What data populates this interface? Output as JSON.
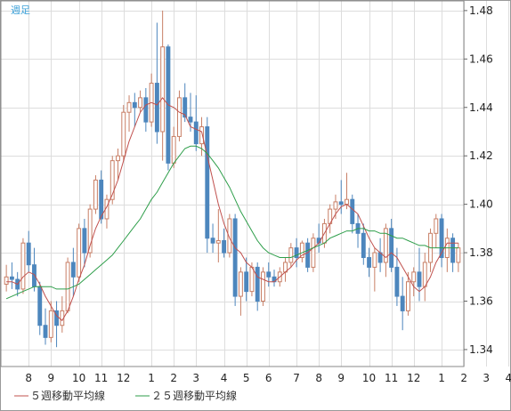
{
  "period_label": "週足",
  "chart_data": {
    "type": "candlestick",
    "title": "",
    "xlabel": "",
    "ylabel": "",
    "ylim": [
      1.333,
      1.484
    ],
    "y_ticks": [
      1.48,
      1.46,
      1.44,
      1.42,
      1.4,
      1.38,
      1.36,
      1.34
    ],
    "y_tick_labels": [
      "1.48",
      "1.46",
      "1.44",
      "1.42",
      "1.40",
      "1.38",
      "1.36",
      "1.34"
    ],
    "grid": true,
    "legend_position": "bottom-left",
    "x_ticks": [
      {
        "label": "8",
        "candle": 4
      },
      {
        "label": "9",
        "candle": 8
      },
      {
        "label": "10",
        "candle": 13
      },
      {
        "label": "11",
        "candle": 17
      },
      {
        "label": "12",
        "candle": 21
      },
      {
        "label": "1",
        "candle": 26
      },
      {
        "label": "2",
        "candle": 30
      },
      {
        "label": "3",
        "candle": 34
      },
      {
        "label": "4",
        "candle": 39
      },
      {
        "label": "5",
        "candle": 43
      },
      {
        "label": "6",
        "candle": 47
      },
      {
        "label": "7",
        "candle": 52
      },
      {
        "label": "8",
        "candle": 56
      },
      {
        "label": "9",
        "candle": 60
      },
      {
        "label": "10",
        "candle": 65
      },
      {
        "label": "11",
        "candle": 69
      },
      {
        "label": "12",
        "candle": 73
      },
      {
        "label": "1",
        "candle": 78
      },
      {
        "label": "2",
        "candle": 82
      },
      {
        "label": "3",
        "candle": 86
      },
      {
        "label": "4",
        "candle": 90
      }
    ],
    "candles": [
      [
        1.367,
        1.375,
        1.364,
        1.37
      ],
      [
        1.37,
        1.376,
        1.365,
        1.369
      ],
      [
        1.369,
        1.372,
        1.362,
        1.365
      ],
      [
        1.365,
        1.386,
        1.363,
        1.384
      ],
      [
        1.384,
        1.389,
        1.372,
        1.375
      ],
      [
        1.375,
        1.382,
        1.364,
        1.366
      ],
      [
        1.366,
        1.368,
        1.346,
        1.35
      ],
      [
        1.35,
        1.357,
        1.342,
        1.345
      ],
      [
        1.345,
        1.36,
        1.343,
        1.356
      ],
      [
        1.356,
        1.36,
        1.341,
        1.35
      ],
      [
        1.35,
        1.362,
        1.347,
        1.356
      ],
      [
        1.356,
        1.378,
        1.355,
        1.376
      ],
      [
        1.376,
        1.382,
        1.362,
        1.37
      ],
      [
        1.37,
        1.392,
        1.368,
        1.39
      ],
      [
        1.39,
        1.394,
        1.374,
        1.38
      ],
      [
        1.38,
        1.4,
        1.378,
        1.398
      ],
      [
        1.398,
        1.412,
        1.396,
        1.41
      ],
      [
        1.41,
        1.414,
        1.392,
        1.394
      ],
      [
        1.394,
        1.404,
        1.39,
        1.402
      ],
      [
        1.402,
        1.42,
        1.4,
        1.418
      ],
      [
        1.418,
        1.423,
        1.41,
        1.42
      ],
      [
        1.42,
        1.441,
        1.418,
        1.438
      ],
      [
        1.438,
        1.445,
        1.43,
        1.442
      ],
      [
        1.442,
        1.446,
        1.432,
        1.44
      ],
      [
        1.44,
        1.447,
        1.438,
        1.444
      ],
      [
        1.444,
        1.448,
        1.43,
        1.434
      ],
      [
        1.434,
        1.454,
        1.432,
        1.45
      ],
      [
        1.45,
        1.475,
        1.425,
        1.43
      ],
      [
        1.43,
        1.48,
        1.418,
        1.465
      ],
      [
        1.465,
        1.466,
        1.414,
        1.417
      ],
      [
        1.417,
        1.432,
        1.415,
        1.428
      ],
      [
        1.428,
        1.447,
        1.426,
        1.444
      ],
      [
        1.444,
        1.45,
        1.434,
        1.436
      ],
      [
        1.436,
        1.446,
        1.43,
        1.434
      ],
      [
        1.434,
        1.445,
        1.422,
        1.425
      ],
      [
        1.425,
        1.436,
        1.42,
        1.432
      ],
      [
        1.432,
        1.436,
        1.38,
        1.386
      ],
      [
        1.386,
        1.392,
        1.38,
        1.384
      ],
      [
        1.384,
        1.398,
        1.376,
        1.385
      ],
      [
        1.385,
        1.39,
        1.378,
        1.38
      ],
      [
        1.38,
        1.396,
        1.378,
        1.394
      ],
      [
        1.394,
        1.396,
        1.358,
        1.362
      ],
      [
        1.362,
        1.374,
        1.354,
        1.372
      ],
      [
        1.372,
        1.378,
        1.36,
        1.364
      ],
      [
        1.364,
        1.376,
        1.362,
        1.374
      ],
      [
        1.374,
        1.376,
        1.356,
        1.36
      ],
      [
        1.36,
        1.374,
        1.358,
        1.372
      ],
      [
        1.372,
        1.376,
        1.366,
        1.37
      ],
      [
        1.37,
        1.373,
        1.366,
        1.368
      ],
      [
        1.368,
        1.374,
        1.366,
        1.372
      ],
      [
        1.372,
        1.378,
        1.368,
        1.376
      ],
      [
        1.376,
        1.384,
        1.374,
        1.382
      ],
      [
        1.382,
        1.386,
        1.374,
        1.378
      ],
      [
        1.378,
        1.385,
        1.376,
        1.384
      ],
      [
        1.384,
        1.386,
        1.372,
        1.374
      ],
      [
        1.374,
        1.388,
        1.372,
        1.386
      ],
      [
        1.386,
        1.392,
        1.38,
        1.384
      ],
      [
        1.384,
        1.394,
        1.382,
        1.392
      ],
      [
        1.392,
        1.4,
        1.388,
        1.398
      ],
      [
        1.398,
        1.404,
        1.394,
        1.401
      ],
      [
        1.401,
        1.41,
        1.396,
        1.4
      ],
      [
        1.4,
        1.413,
        1.398,
        1.402
      ],
      [
        1.402,
        1.404,
        1.388,
        1.392
      ],
      [
        1.392,
        1.396,
        1.382,
        1.388
      ],
      [
        1.388,
        1.392,
        1.375,
        1.378
      ],
      [
        1.378,
        1.382,
        1.37,
        1.374
      ],
      [
        1.374,
        1.382,
        1.364,
        1.38
      ],
      [
        1.38,
        1.386,
        1.372,
        1.376
      ],
      [
        1.376,
        1.392,
        1.37,
        1.39
      ],
      [
        1.39,
        1.394,
        1.372,
        1.374
      ],
      [
        1.374,
        1.382,
        1.358,
        1.362
      ],
      [
        1.362,
        1.37,
        1.348,
        1.356
      ],
      [
        1.356,
        1.372,
        1.354,
        1.368
      ],
      [
        1.368,
        1.374,
        1.362,
        1.372
      ],
      [
        1.372,
        1.382,
        1.36,
        1.366
      ],
      [
        1.366,
        1.38,
        1.36,
        1.376
      ],
      [
        1.376,
        1.39,
        1.372,
        1.388
      ],
      [
        1.388,
        1.396,
        1.382,
        1.394
      ],
      [
        1.394,
        1.396,
        1.374,
        1.378
      ],
      [
        1.378,
        1.39,
        1.372,
        1.386
      ],
      [
        1.386,
        1.388,
        1.372,
        1.376
      ],
      [
        1.376,
        1.384,
        1.372,
        1.382
      ]
    ],
    "series": [
      {
        "name": "５週移動平均線",
        "color": "#c0504d",
        "values": [
          1.368,
          1.368,
          1.367,
          1.37,
          1.372,
          1.371,
          1.367,
          1.362,
          1.358,
          1.354,
          1.352,
          1.356,
          1.362,
          1.369,
          1.375,
          1.383,
          1.39,
          1.395,
          1.399,
          1.404,
          1.41,
          1.418,
          1.426,
          1.432,
          1.438,
          1.441,
          1.442,
          1.441,
          1.444,
          1.441,
          1.44,
          1.438,
          1.437,
          1.432,
          1.431,
          1.43,
          1.42,
          1.41,
          1.4,
          1.392,
          1.386,
          1.382,
          1.38,
          1.376,
          1.374,
          1.37,
          1.369,
          1.368,
          1.368,
          1.37,
          1.372,
          1.374,
          1.377,
          1.379,
          1.38,
          1.382,
          1.384,
          1.388,
          1.392,
          1.396,
          1.399,
          1.4,
          1.398,
          1.396,
          1.391,
          1.386,
          1.382,
          1.38,
          1.378,
          1.38,
          1.378,
          1.374,
          1.37,
          1.366,
          1.364,
          1.366,
          1.37,
          1.376,
          1.38,
          1.384,
          1.384,
          1.384
        ]
      },
      {
        "name": "２５週移動平均線",
        "color": "#2e9e4a",
        "values": [
          1.361,
          1.362,
          1.363,
          1.364,
          1.365,
          1.366,
          1.366,
          1.366,
          1.366,
          1.365,
          1.365,
          1.365,
          1.366,
          1.367,
          1.369,
          1.371,
          1.373,
          1.375,
          1.377,
          1.379,
          1.382,
          1.385,
          1.388,
          1.391,
          1.394,
          1.398,
          1.402,
          1.405,
          1.409,
          1.413,
          1.417,
          1.42,
          1.423,
          1.424,
          1.424,
          1.423,
          1.421,
          1.418,
          1.415,
          1.411,
          1.407,
          1.402,
          1.397,
          1.393,
          1.389,
          1.385,
          1.382,
          1.38,
          1.379,
          1.378,
          1.378,
          1.378,
          1.379,
          1.38,
          1.381,
          1.382,
          1.383,
          1.384,
          1.386,
          1.387,
          1.388,
          1.389,
          1.389,
          1.39,
          1.39,
          1.389,
          1.389,
          1.388,
          1.388,
          1.387,
          1.386,
          1.386,
          1.385,
          1.384,
          1.383,
          1.383,
          1.382,
          1.382,
          1.382,
          1.382,
          1.382,
          1.382
        ]
      }
    ]
  }
}
